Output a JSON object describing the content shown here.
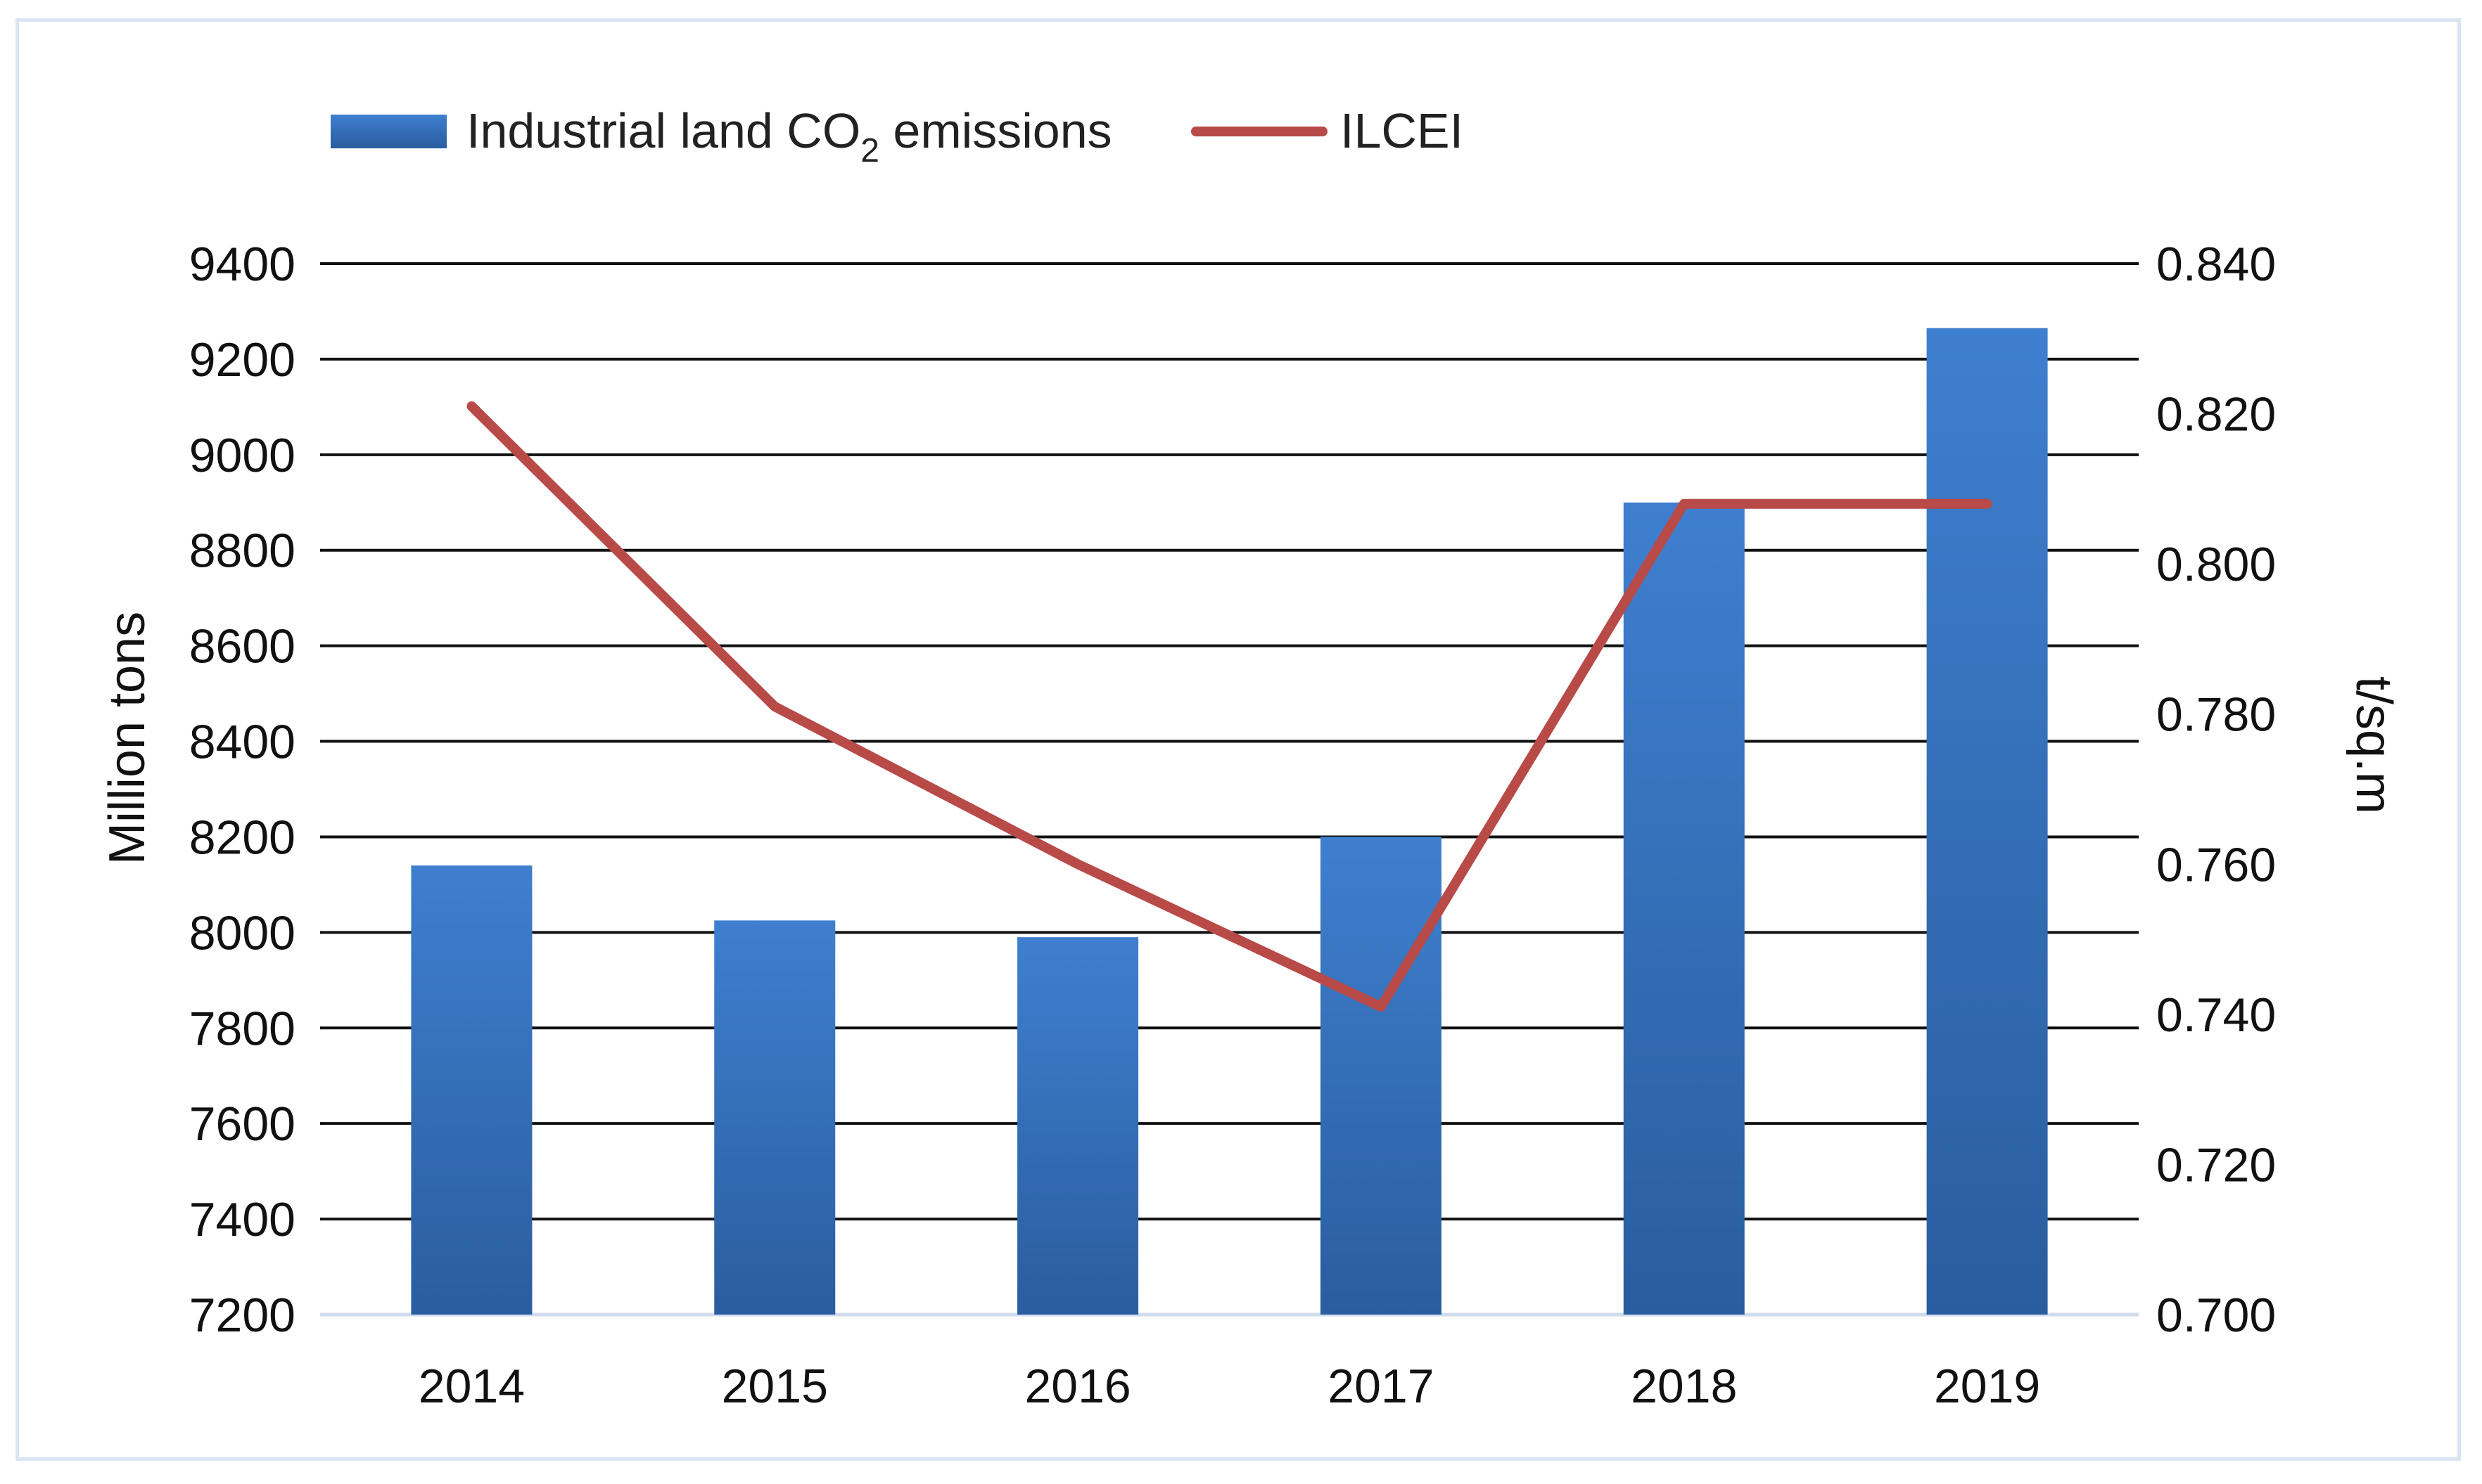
{
  "chart_data": {
    "type": "bar",
    "title": "",
    "categories": [
      "2014",
      "2015",
      "2016",
      "2017",
      "2018",
      "2019"
    ],
    "series": [
      {
        "name": "Industrial land CO2 emissions",
        "type": "bar",
        "axis": "left",
        "values": [
          8140,
          8025,
          7990,
          8200,
          8900,
          9265
        ]
      },
      {
        "name": "ILCEI",
        "type": "line",
        "axis": "right",
        "values": [
          0.821,
          0.781,
          0.76,
          0.741,
          0.808,
          0.808
        ]
      }
    ],
    "ylabel": "Million tons",
    "y2label": "t/sq.m",
    "ylim": [
      7200,
      9400
    ],
    "y2lim": [
      0.7,
      0.84
    ],
    "yticks": [
      "9400",
      "9200",
      "9000",
      "8800",
      "8600",
      "8400",
      "8200",
      "8000",
      "7800",
      "7600",
      "7400",
      "7200"
    ],
    "y2ticks": [
      "0.840",
      "0.820",
      "0.800",
      "0.780",
      "0.760",
      "0.740",
      "0.720",
      "0.700"
    ],
    "grid": true,
    "legend_position": "top-left"
  },
  "legend": {
    "bar_label_main": "Industrial land CO",
    "bar_label_sub": "2",
    "bar_label_tail": " emissions",
    "line_label": "ILCEI"
  },
  "colors": {
    "bar_top": "#3f7fcf",
    "bar_bottom": "#2a5d9f",
    "line": "#b84a48",
    "grid": "#111111",
    "baseline": "#cfdcee"
  }
}
